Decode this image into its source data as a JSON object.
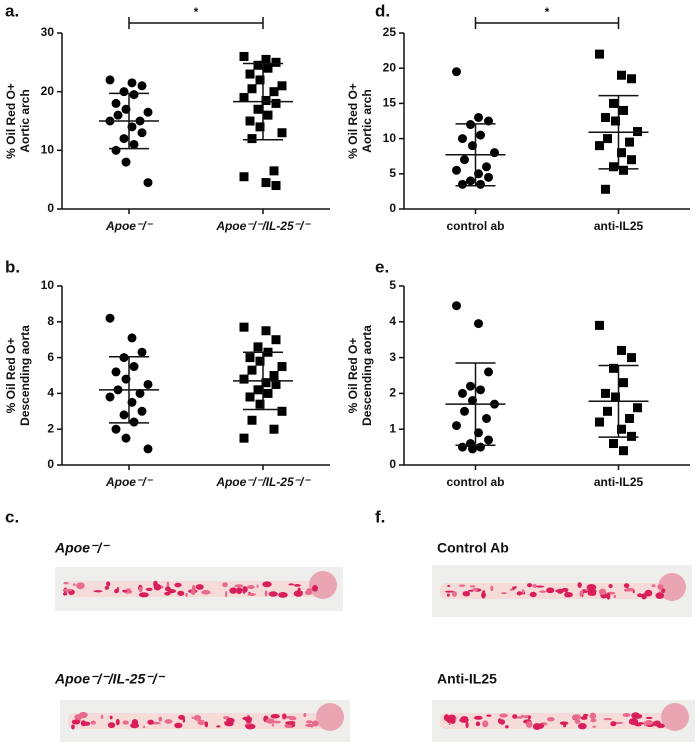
{
  "chart_data": [
    {
      "type": "dotplot",
      "panel_label": "a.",
      "ylabel": [
        "% Oil Red O+",
        "Aortic arch"
      ],
      "ylim": [
        0,
        30
      ],
      "yticks": [
        0,
        10,
        20,
        30
      ],
      "groups": [
        {
          "name": "Apoe⁻/⁻",
          "marker": "circle",
          "values": [
            22,
            21.5,
            21,
            20,
            19.5,
            18,
            17,
            16.5,
            16,
            15,
            15,
            14,
            13,
            12,
            11,
            10,
            8,
            4.5
          ],
          "mean": 15,
          "sd": 4.7
        },
        {
          "name": "Apoe⁻/⁻/IL-25⁻/⁻",
          "marker": "square",
          "values": [
            26,
            25.5,
            25,
            24.5,
            24,
            23,
            22,
            21,
            20.5,
            20,
            19,
            18.5,
            18,
            17,
            16,
            15,
            14,
            13,
            12,
            6.5,
            5.5,
            4.5,
            4
          ],
          "mean": 18.3,
          "sd": 6.5
        }
      ],
      "significance": "*"
    },
    {
      "type": "dotplot",
      "panel_label": "b.",
      "ylabel": [
        "% Oil Red O+",
        "Descending aorta"
      ],
      "ylim": [
        0,
        10
      ],
      "yticks": [
        0,
        2,
        4,
        6,
        8,
        10
      ],
      "groups": [
        {
          "name": "Apoe⁻/⁻",
          "marker": "circle",
          "values": [
            8.2,
            7.1,
            6.3,
            6,
            5.5,
            5.2,
            4.8,
            4.5,
            4.2,
            4,
            3.8,
            3.5,
            3,
            2.8,
            2.4,
            2,
            1.5,
            0.9
          ],
          "mean": 4.2,
          "sd": 1.85
        },
        {
          "name": "Apoe⁻/⁻/IL-25⁻/⁻",
          "marker": "square",
          "values": [
            7.7,
            7.5,
            7,
            6.6,
            6.3,
            6,
            5.8,
            5.5,
            5.3,
            5,
            4.8,
            4.6,
            4.5,
            4.2,
            4,
            3.8,
            3.4,
            3,
            2.5,
            2,
            1.5
          ],
          "mean": 4.7,
          "sd": 1.6
        }
      ]
    },
    {
      "type": "dotplot",
      "panel_label": "d.",
      "ylabel": [
        "% Oil Red O+",
        "Aortic arch"
      ],
      "ylim": [
        0,
        25
      ],
      "yticks": [
        0,
        5,
        10,
        15,
        20,
        25
      ],
      "groups": [
        {
          "name": "control ab",
          "marker": "circle",
          "values": [
            19.5,
            13,
            12.5,
            12,
            10.5,
            10,
            9,
            8,
            7,
            6,
            5.5,
            5,
            4.5,
            4,
            3.5,
            3.5
          ],
          "mean": 7.7,
          "sd": 4.4
        },
        {
          "name": "anti-IL25",
          "marker": "square",
          "values": [
            22,
            19,
            18.5,
            15,
            14,
            13,
            12.5,
            11,
            10,
            9.5,
            9,
            8,
            7,
            6,
            5.5,
            2.8
          ],
          "mean": 10.9,
          "sd": 5.2
        }
      ],
      "significance": "*"
    },
    {
      "type": "dotplot",
      "panel_label": "e.",
      "ylabel": [
        "% Oil Red O+",
        "Descending aorta"
      ],
      "ylim": [
        0,
        5
      ],
      "yticks": [
        0,
        1,
        2,
        3,
        4,
        5
      ],
      "groups": [
        {
          "name": "control ab",
          "marker": "circle",
          "values": [
            4.45,
            3.95,
            2.6,
            2.2,
            2.1,
            2,
            1.8,
            1.7,
            1.5,
            1.3,
            1.1,
            0.9,
            0.7,
            0.6,
            0.5,
            0.5,
            0.45
          ],
          "mean": 1.7,
          "sd": 1.15
        },
        {
          "name": "anti-IL25",
          "marker": "square",
          "values": [
            3.9,
            3.2,
            3,
            2.7,
            2.3,
            2,
            1.9,
            1.6,
            1.5,
            1.3,
            1.2,
            1,
            0.8,
            0.6,
            0.4
          ],
          "mean": 1.78,
          "sd": 1.0
        }
      ]
    }
  ],
  "image_panels": [
    {
      "panel_label": "c.",
      "captions": [
        "Apoe⁻/⁻",
        "Apoe⁻/⁻/IL-25⁻/⁻"
      ]
    },
    {
      "panel_label": "f.",
      "captions": [
        "Control Ab",
        "Anti-IL25"
      ]
    }
  ]
}
